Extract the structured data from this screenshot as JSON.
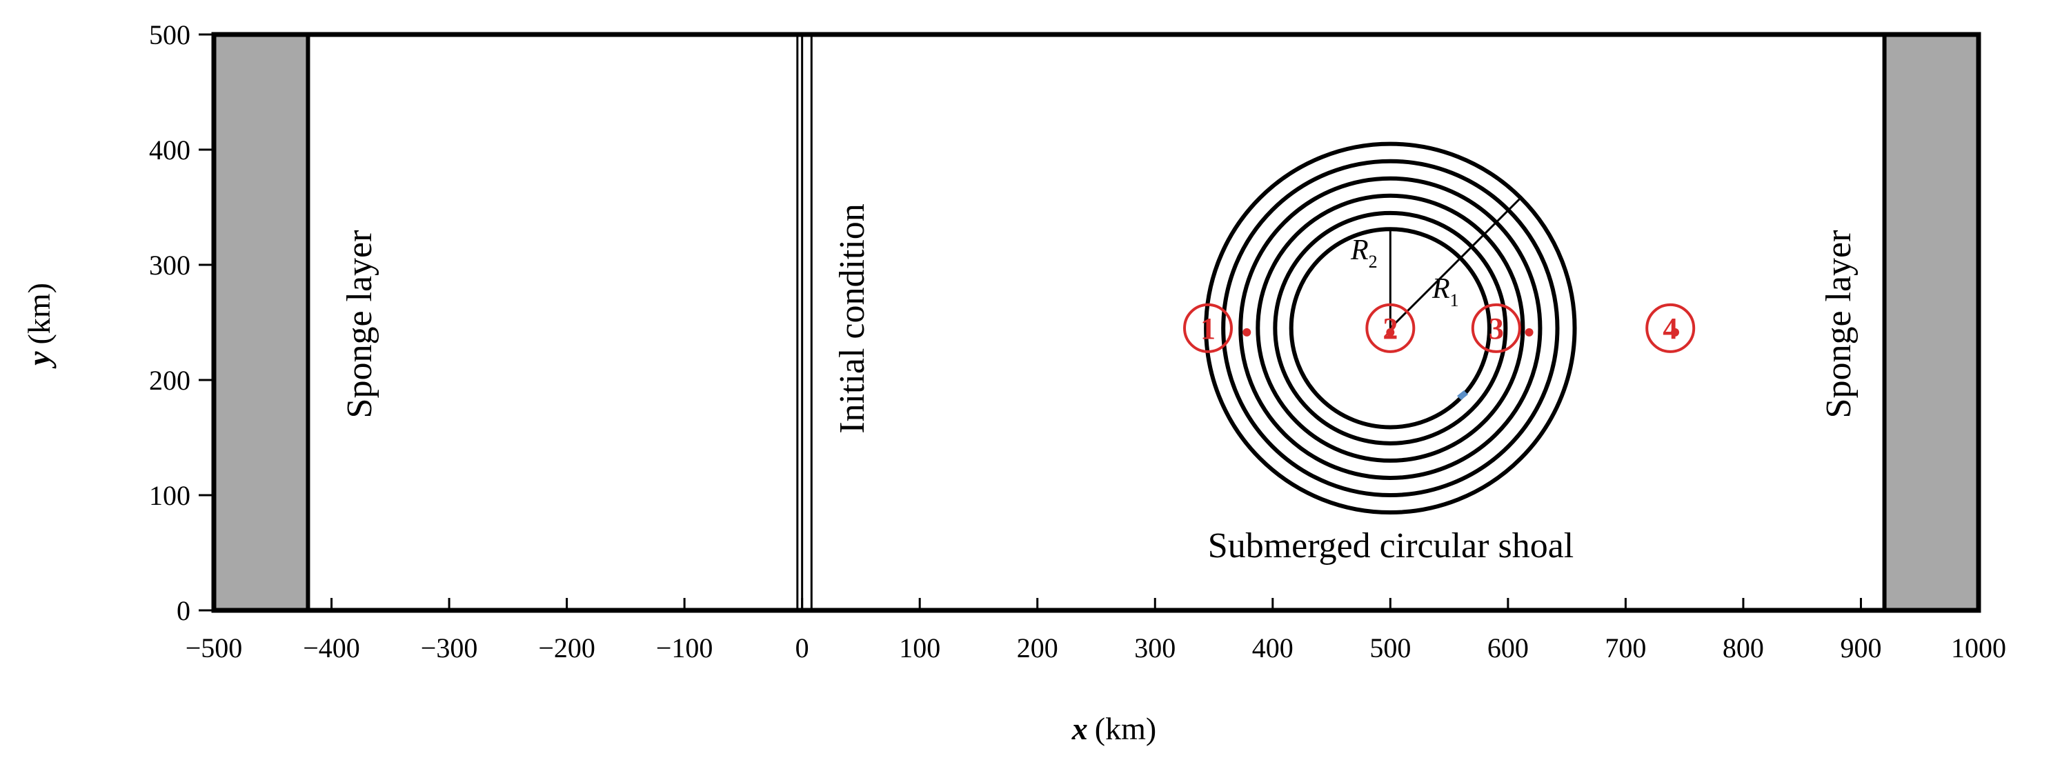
{
  "axes": {
    "x": {
      "title_var": "x",
      "title_unit": "(km)",
      "ticks": [
        "−500",
        "−400",
        "−300",
        "−200",
        "−100",
        "0",
        "100",
        "200",
        "300",
        "400",
        "500",
        "600",
        "700",
        "800",
        "900",
        "1000"
      ],
      "tick_values": [
        -500,
        -400,
        -300,
        -200,
        -100,
        0,
        100,
        200,
        300,
        400,
        500,
        600,
        700,
        800,
        900,
        1000
      ],
      "range": [
        -500,
        1000
      ]
    },
    "y": {
      "title_var": "y",
      "title_unit": "(km)",
      "ticks": [
        "0",
        "100",
        "200",
        "300",
        "400",
        "500"
      ],
      "tick_values": [
        0,
        100,
        200,
        300,
        400,
        500
      ],
      "range": [
        0,
        500
      ]
    }
  },
  "regions": {
    "sponge_left": {
      "label": "Sponge layer",
      "x_range": [
        -500,
        -420
      ]
    },
    "sponge_right": {
      "label": "Sponge layer",
      "x_range": [
        920,
        1000
      ]
    },
    "initial_condition": {
      "label": "Initial condition",
      "x_lines": [
        -4,
        0,
        8
      ]
    },
    "shoal": {
      "label": "Submerged circular shoal",
      "center": [
        500,
        245
      ],
      "ring_radii": [
        160,
        145,
        130,
        115,
        100,
        86
      ],
      "r1_label": "R",
      "r1_sub": "1",
      "r2_label": "R",
      "r2_sub": "2"
    }
  },
  "gauges": [
    {
      "label": "1",
      "circle_x": 345,
      "y": 245,
      "point_x": 378
    },
    {
      "label": "2",
      "circle_x": 500,
      "y": 245,
      "point_x": 500
    },
    {
      "label": "3",
      "circle_x": 590,
      "y": 245,
      "point_x": 618
    },
    {
      "label": "4",
      "circle_x": 738,
      "y": 245,
      "point_x": 742
    }
  ],
  "colors": {
    "frame": "#000000",
    "sponge_fill": "#a8a8a8",
    "gauge": "#d92b2b",
    "marker": "#5b8fc7"
  }
}
